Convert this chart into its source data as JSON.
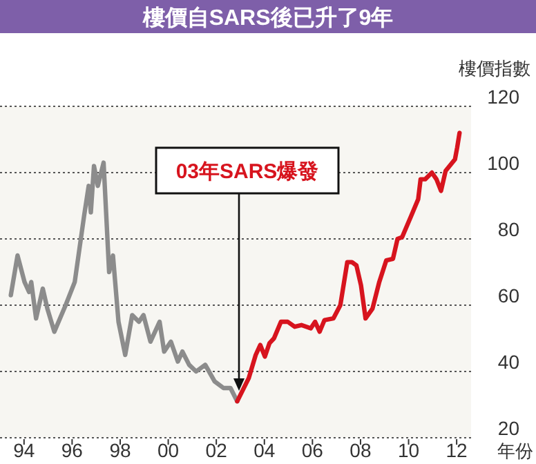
{
  "chart_data": {
    "type": "line",
    "title": "樓價自SARS後已升了9年",
    "ylabel": "樓價指數",
    "xlabel": "年份",
    "xlim": [
      1993,
      2012.6
    ],
    "ylim": [
      20,
      120
    ],
    "xticks": [
      {
        "value": 1994,
        "label": "94"
      },
      {
        "value": 1996,
        "label": "96"
      },
      {
        "value": 1998,
        "label": "98"
      },
      {
        "value": 2000,
        "label": "00"
      },
      {
        "value": 2002,
        "label": "02"
      },
      {
        "value": 2004,
        "label": "04"
      },
      {
        "value": 2006,
        "label": "06"
      },
      {
        "value": 2008,
        "label": "08"
      },
      {
        "value": 2010,
        "label": "10"
      },
      {
        "value": 2012,
        "label": "12"
      }
    ],
    "yticks": [
      20,
      40,
      60,
      80,
      100,
      120
    ],
    "grid": "y",
    "annotations": [
      "03年SARS爆發"
    ],
    "series": [
      {
        "color": "#8c8c8c",
        "x": [
          1993.45,
          1993.73,
          1994.02,
          1994.21,
          1994.3,
          1994.5,
          1994.78,
          1994.97,
          1995.26,
          1995.73,
          1996.11,
          1996.5,
          1996.69,
          1996.78,
          1996.91,
          1997.07,
          1997.31,
          1997.54,
          1997.7,
          1997.93,
          1998.21,
          1998.5,
          1998.78,
          1998.97,
          1999.26,
          1999.64,
          1999.83,
          2000.11,
          2000.4,
          2000.59,
          2000.87,
          2001.16,
          2001.54,
          2001.93,
          2002.3,
          2002.59,
          2002.87
        ],
        "values": [
          63,
          75,
          67,
          64,
          67,
          56,
          65,
          59,
          52,
          60,
          67,
          87,
          96,
          88,
          102,
          96,
          103,
          70,
          75,
          55,
          45,
          57,
          55,
          57,
          49,
          55,
          46,
          49,
          43,
          46,
          42,
          40,
          42,
          37,
          35,
          35,
          31
        ]
      },
      {
        "color": "#d7141e",
        "x": [
          2002.87,
          2003.35,
          2003.64,
          2003.83,
          2004.02,
          2004.21,
          2004.4,
          2004.69,
          2004.97,
          2005.26,
          2005.54,
          2005.93,
          2006.11,
          2006.3,
          2006.5,
          2006.87,
          2007.16,
          2007.45,
          2007.64,
          2007.83,
          2008.02,
          2008.21,
          2008.5,
          2008.78,
          2009.07,
          2009.35,
          2009.54,
          2009.73,
          2010.11,
          2010.4,
          2010.5,
          2010.69,
          2010.97,
          2011.16,
          2011.35,
          2011.54,
          2011.93,
          2012.02,
          2012.12
        ],
        "values": [
          31,
          38,
          45,
          48,
          44.5,
          48.5,
          50,
          55,
          55,
          53.5,
          54,
          53,
          55,
          52,
          55.5,
          56,
          60,
          73,
          73,
          72,
          66,
          56,
          59,
          67,
          73.5,
          74,
          80,
          80.5,
          87,
          92,
          98,
          98,
          100,
          98,
          94.5,
          100.5,
          104,
          107.5,
          112
        ]
      }
    ]
  }
}
